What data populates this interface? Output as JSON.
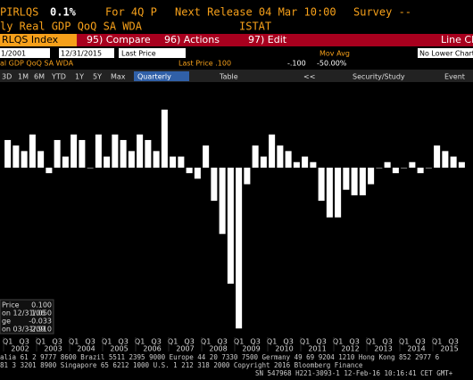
{
  "header": {
    "ticker": "PIRLQS",
    "value": "0.1%",
    "period": "For 4Q P",
    "next_release": "Next Release 04 Mar 10:00",
    "survey": "Survey --",
    "description": "ly Real GDP QoQ SA WDA",
    "source": "ISTAT"
  },
  "toolbar": {
    "security": "RLQS Index",
    "compare": "95) Compare",
    "actions": "96) Actions",
    "edit": "97) Edit",
    "chart_type": "Line Ch"
  },
  "settings": {
    "start": "1/2001",
    "end": "12/31/2015",
    "field": "Last Price",
    "mov_avg": "Mov Avg",
    "lower": "No Lower Chart",
    "legend_name": "al GDP QoQ SA WDA",
    "last_price": "Last Price .100",
    "change": "-.100",
    "change_pct": "-50.00%"
  },
  "ranges": [
    "3D",
    "1M",
    "6M",
    "YTD",
    "1Y",
    "5Y",
    "Max"
  ],
  "frequency": "Quarterly",
  "table": "Table",
  "study": "Security/Study",
  "event": "Event",
  "stats": [
    {
      "label": "Price",
      "value": "0.100"
    },
    {
      "label": "on 12/31/06",
      "value": "1.050"
    },
    {
      "label": "ge",
      "value": "-0.033"
    },
    {
      "label": "on 03/31/09",
      "value": "-2.910"
    }
  ],
  "footer": [
    "alia 61 2 9777 8600 Brazil 5511 2395 9000 Europe 44 20 7330 7500 Germany 49 69 9204 1210 Hong Kong 852 2977 6",
    "81 3 3201 8900        Singapore 65 6212 1000        U.S. 1 212 318 2000        Copyright 2016 Bloomberg Finance",
    "SN 547968 H221-3093-1 12-Feb-16 10:16:41 CET  GMT+"
  ],
  "chart_data": {
    "type": "bar",
    "color": "#ffffff",
    "categories": [
      "Q1",
      null,
      "Q3",
      null,
      "Q1",
      null,
      "Q3",
      null,
      "Q1",
      null,
      "Q3",
      null,
      "Q1",
      null,
      "Q3",
      null,
      "Q1",
      null,
      "Q3",
      null,
      "Q1",
      null,
      "Q3",
      null,
      "Q1",
      null,
      "Q3",
      null,
      "Q1",
      null,
      "Q3",
      null,
      "Q1",
      null,
      "Q3",
      null,
      "Q1",
      null,
      "Q3",
      null,
      "Q1",
      null,
      "Q3",
      null,
      "Q1",
      null,
      "Q3",
      null,
      "Q1",
      null,
      "Q3",
      null,
      "Q1",
      null,
      "Q3",
      null
    ],
    "years": [
      "2002",
      "2003",
      "2004",
      "2005",
      "2006",
      "2007",
      "2008",
      "2009",
      "2010",
      "2011",
      "2012",
      "2013",
      "2014",
      "2015"
    ],
    "values": [
      0.5,
      0.4,
      0.3,
      0.6,
      0.3,
      -0.1,
      0.5,
      0.2,
      0.6,
      0.5,
      0.0,
      0.6,
      0.2,
      0.6,
      0.5,
      0.3,
      0.6,
      0.5,
      0.3,
      1.05,
      0.2,
      0.2,
      -0.1,
      -0.2,
      0.4,
      -0.6,
      -1.2,
      -2.1,
      -2.91,
      -0.3,
      0.4,
      0.2,
      0.6,
      0.4,
      0.3,
      0.1,
      0.2,
      0.1,
      -0.6,
      -0.9,
      -0.9,
      -0.4,
      -0.5,
      -0.5,
      -0.3,
      0.0,
      0.1,
      -0.1,
      0.0,
      0.1,
      -0.1,
      0.0,
      0.4,
      0.3,
      0.2,
      0.1
    ],
    "ylim": [
      -3.1,
      1.5
    ]
  }
}
